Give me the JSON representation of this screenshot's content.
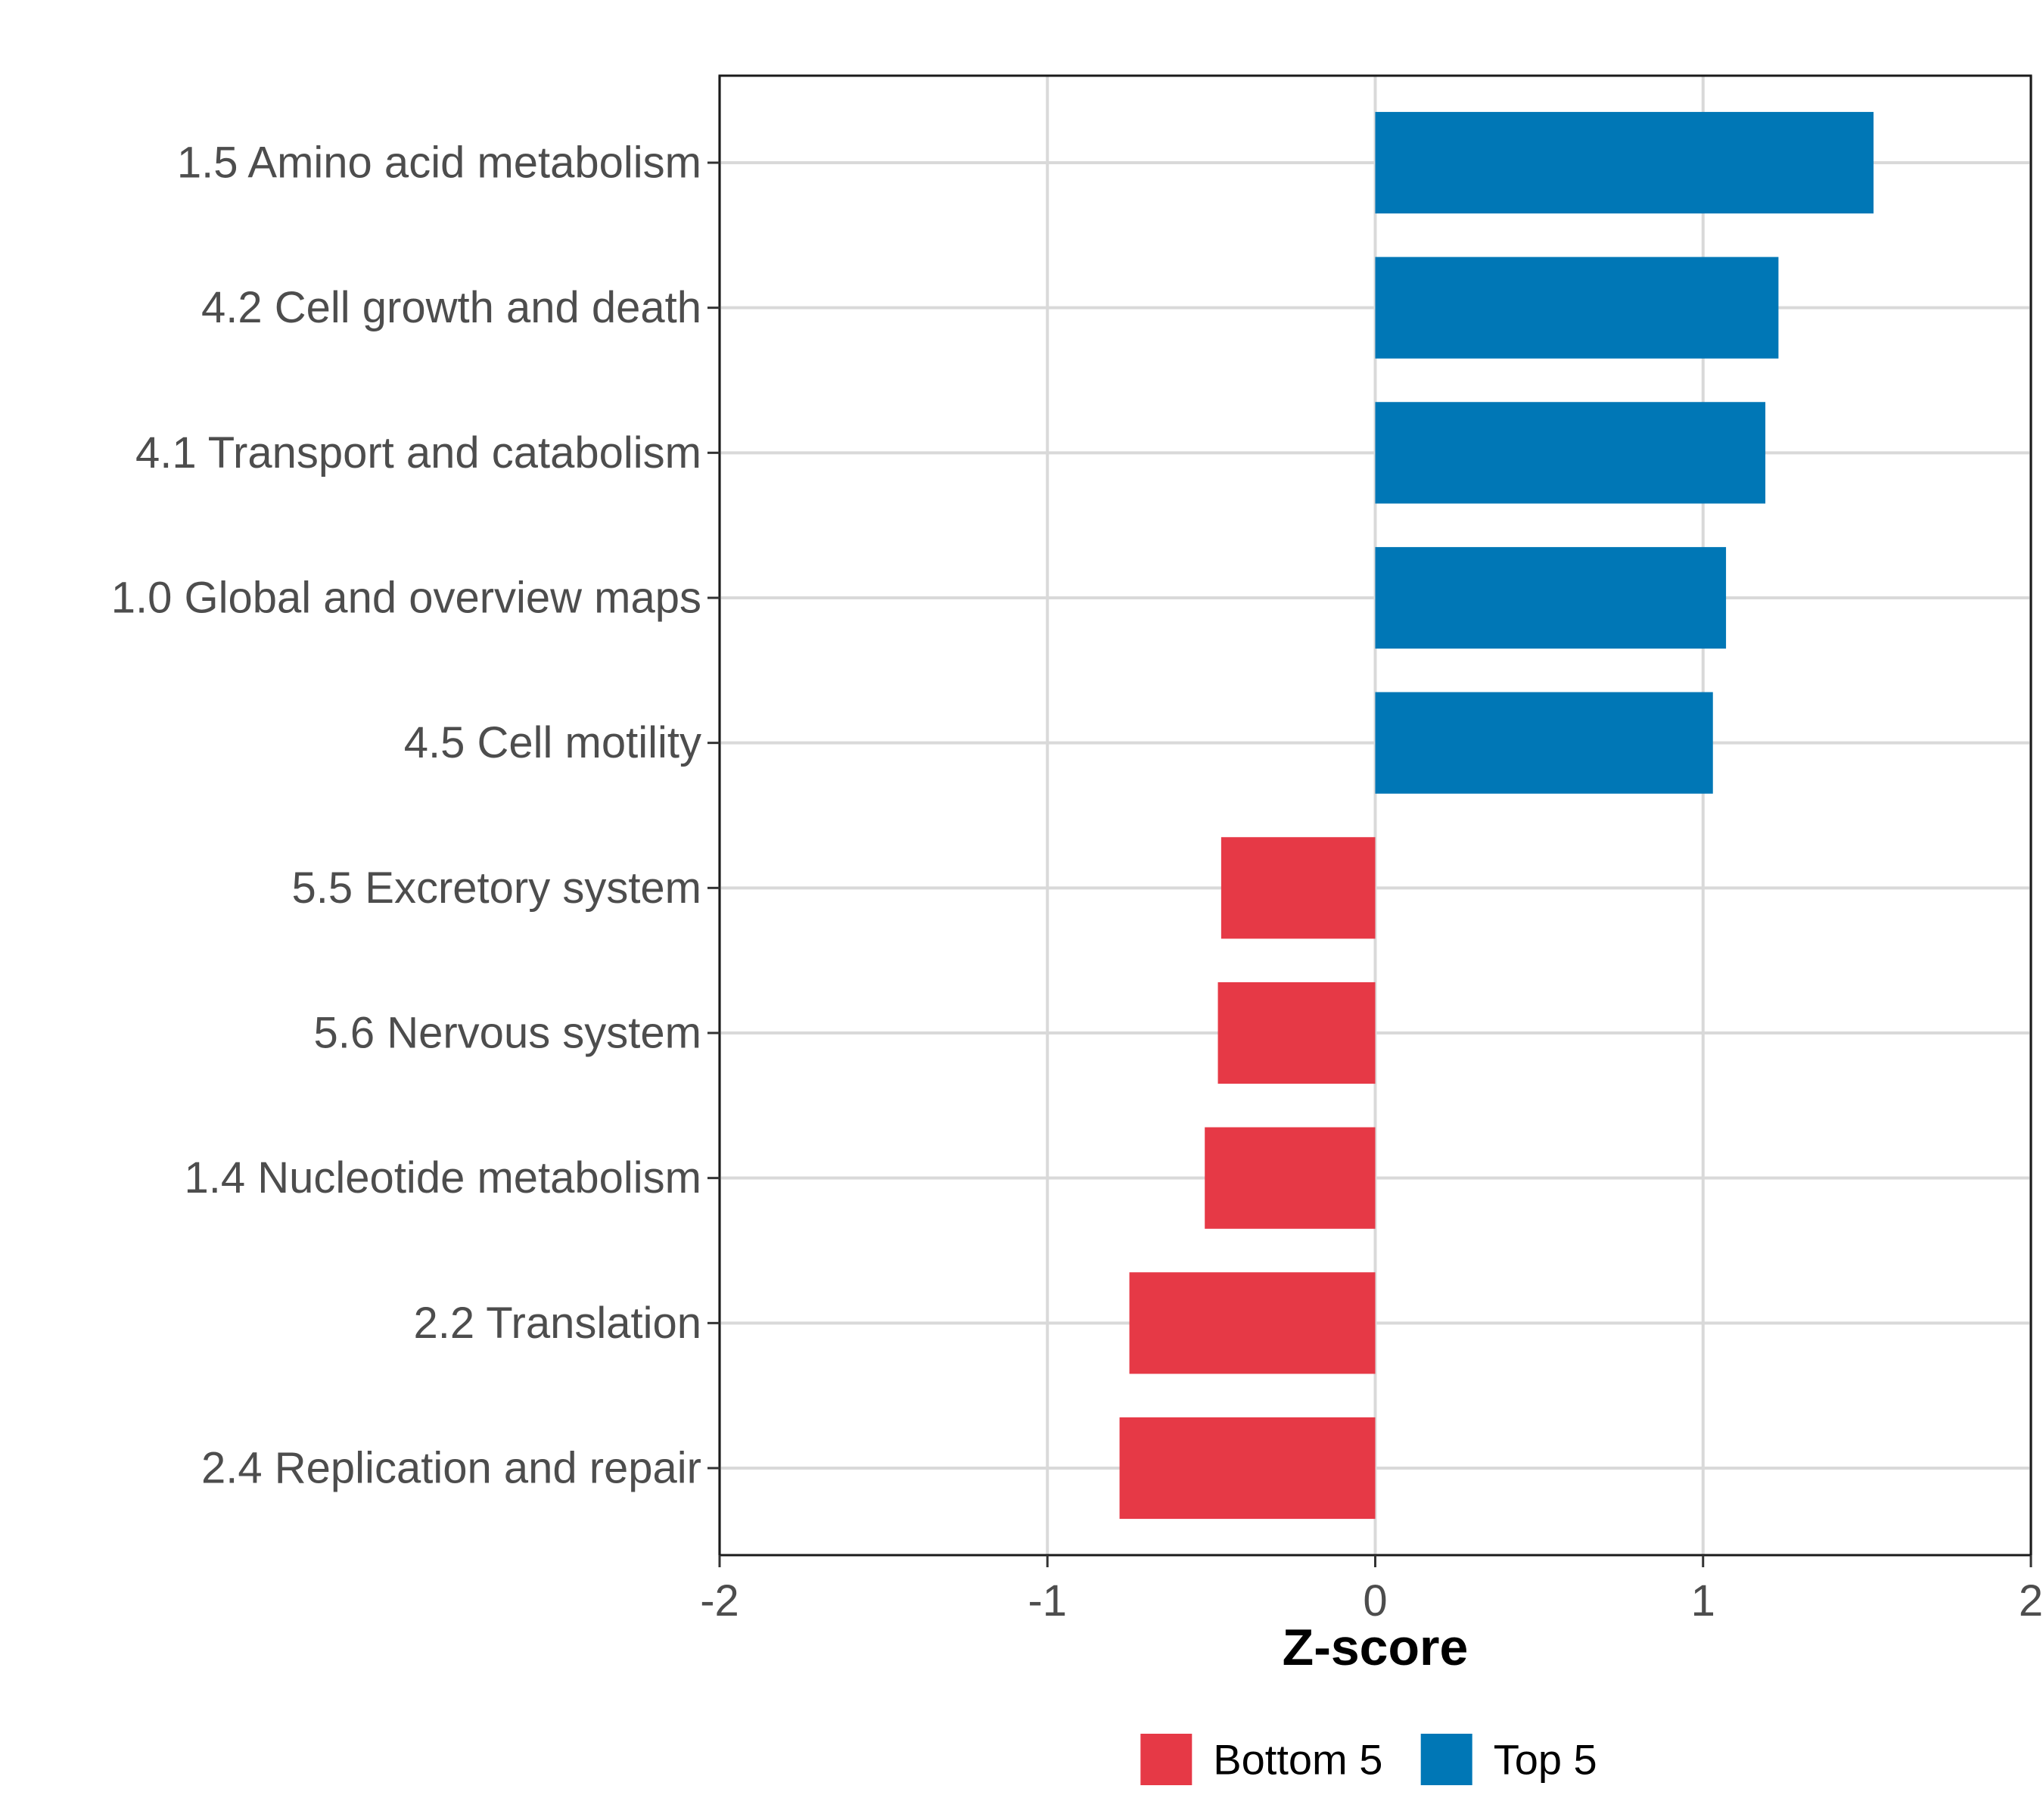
{
  "chart_data": {
    "type": "bar",
    "orientation": "horizontal",
    "title": "",
    "xlabel": "Z-score",
    "ylabel": "",
    "xlim": [
      -2,
      2
    ],
    "xticks": [
      -2,
      -1,
      0,
      1,
      2
    ],
    "xtick_labels": [
      "-2",
      "-1",
      "0",
      "1",
      "2"
    ],
    "grid": true,
    "categories": [
      "1.5 Amino acid metabolism",
      "4.2 Cell growth and death",
      "4.1 Transport and catabolism",
      "1.0 Global and overview maps",
      "4.5 Cell motility",
      "5.5 Excretory system",
      "5.6 Nervous system",
      "1.4 Nucleotide metabolism",
      "2.2 Translation",
      "2.4 Replication and repair"
    ],
    "values": [
      1.52,
      1.23,
      1.19,
      1.07,
      1.03,
      -0.47,
      -0.48,
      -0.52,
      -0.75,
      -0.78
    ],
    "groups": [
      "Top 5",
      "Top 5",
      "Top 5",
      "Top 5",
      "Top 5",
      "Bottom 5",
      "Bottom 5",
      "Bottom 5",
      "Bottom 5",
      "Bottom 5"
    ],
    "legend": {
      "position": "bottom",
      "entries": [
        {
          "label": "Bottom 5",
          "color": "#e63946"
        },
        {
          "label": "Top 5",
          "color": "#0077b6"
        }
      ]
    }
  }
}
